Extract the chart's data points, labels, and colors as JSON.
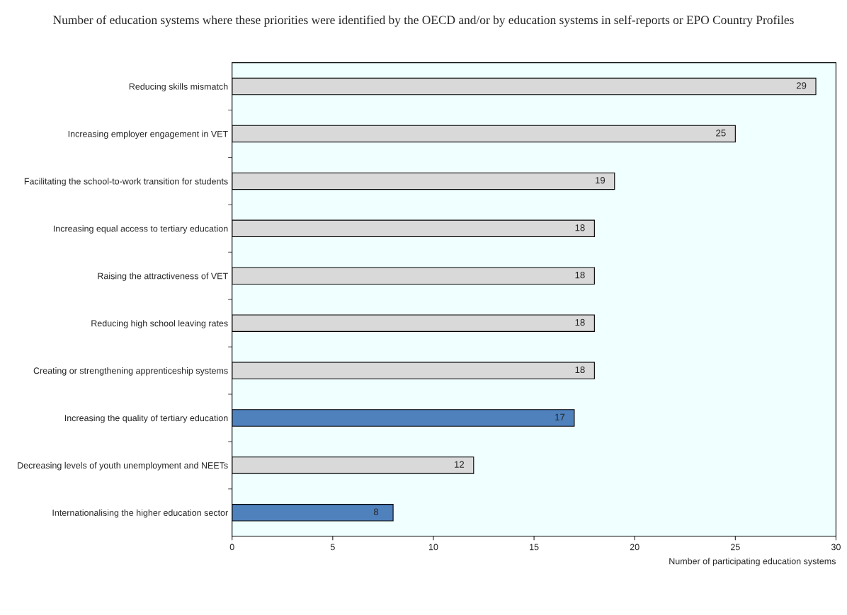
{
  "chart_data": {
    "type": "bar",
    "orientation": "horizontal",
    "title": "Number of education systems where these priorities were identified by the OECD and/or by education systems in self-reports or EPO Country Profiles",
    "xlabel": "Number of participating education systems",
    "categories": [
      "Reducing skills mismatch",
      "Increasing employer engagement in VET",
      "Facilitating the school-to-work transition for students",
      "Increasing equal access to tertiary education",
      "Raising the attractiveness of VET",
      "Reducing high school leaving rates",
      "Creating or strengthening apprenticeship systems",
      "Increasing the quality of tertiary education",
      "Decreasing levels of youth unemployment and NEETs",
      "Internationalising the higher education sector"
    ],
    "values": [
      29,
      25,
      19,
      18,
      18,
      18,
      18,
      17,
      12,
      8
    ],
    "colors": [
      "#d9d9d9",
      "#d9d9d9",
      "#d9d9d9",
      "#d9d9d9",
      "#d9d9d9",
      "#d9d9d9",
      "#d9d9d9",
      "#4f81bd",
      "#d9d9d9",
      "#4f81bd"
    ],
    "xlim": [
      0,
      30
    ],
    "xticks": [
      0,
      5,
      10,
      15,
      20,
      25,
      30
    ],
    "data_labels": true,
    "grid": false,
    "legend": false
  }
}
